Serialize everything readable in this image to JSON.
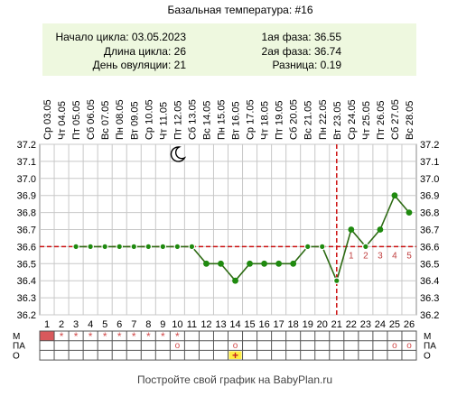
{
  "chart_data": {
    "type": "line",
    "title": "Базальная температура: #16",
    "info": {
      "cycle_start": "Начало цикла: 03.05.2023",
      "cycle_length": "Длина цикла: 26",
      "ovulation_day": "День овуляции: 21",
      "phase1": "1ая фаза: 36.55",
      "phase2": "2ая фаза: 36.74",
      "difference": "Разница: 0.19"
    },
    "dates": [
      "Ср 03.05",
      "Чт 04.05",
      "Пт 05.05",
      "Сб 06.05",
      "Вс 07.05",
      "Пн 08.05",
      "Вт 09.05",
      "Ср 10.05",
      "Чт 11.05",
      "Пт 12.05",
      "Сб 13.05",
      "Вс 14.05",
      "Пн 15.05",
      "Вт 16.05",
      "Ср 17.05",
      "Чт 18.05",
      "Пт 19.05",
      "Сб 20.05",
      "Вс 21.05",
      "Пн 22.05",
      "Вт 23.05",
      "Ср 24.05",
      "Чт 25.05",
      "Пт 26.05",
      "Сб 27.05",
      "Вс 28.05"
    ],
    "days": [
      "1",
      "2",
      "3",
      "4",
      "5",
      "6",
      "7",
      "8",
      "9",
      "10",
      "11",
      "12",
      "13",
      "14",
      "15",
      "16",
      "17",
      "18",
      "19",
      "20",
      "21",
      "22",
      "23",
      "24",
      "25",
      "26"
    ],
    "series": [
      {
        "values": [
          null,
          null,
          36.6,
          36.6,
          36.6,
          36.6,
          36.6,
          36.6,
          36.6,
          36.6,
          36.6,
          36.5,
          36.5,
          36.4,
          36.5,
          36.5,
          36.5,
          36.5,
          36.6,
          36.6,
          36.4,
          36.7,
          36.6,
          36.7,
          36.9,
          36.8
        ]
      }
    ],
    "y_ticks": [
      "36.2",
      "36.3",
      "36.4",
      "36.5",
      "36.6",
      "36.7",
      "36.8",
      "36.9",
      "37.0",
      "37.1",
      "37.2"
    ],
    "ylim": [
      36.2,
      37.2
    ],
    "coverline": 36.6,
    "ovulation_index": 21,
    "post_ovulation_labels": [
      {
        "day": 22,
        "text": "1"
      },
      {
        "day": 23,
        "text": "2"
      },
      {
        "day": 24,
        "text": "3"
      },
      {
        "day": 25,
        "text": "4"
      },
      {
        "day": 26,
        "text": "5"
      }
    ],
    "moon_day": 10,
    "rows": {
      "labels": [
        "М",
        "ПА",
        "О"
      ],
      "menses_red_days": [
        1
      ],
      "menses_star_days": [
        2,
        3,
        4,
        5,
        6,
        7,
        8,
        9,
        10
      ],
      "pa_circle_days": [
        10,
        14,
        25,
        26
      ],
      "o_plus_days": [
        14
      ]
    },
    "marks": {
      "star": "*",
      "circle": "o",
      "plus": "+"
    },
    "colors": {
      "line": "#2e6b14",
      "point": "#1f8a0f",
      "coverline": "#cc1010",
      "menses": "#d9595c",
      "info_bg": "#eef8df"
    },
    "grid": true
  },
  "footer": "Постройте свой график на BabyPlan.ru"
}
